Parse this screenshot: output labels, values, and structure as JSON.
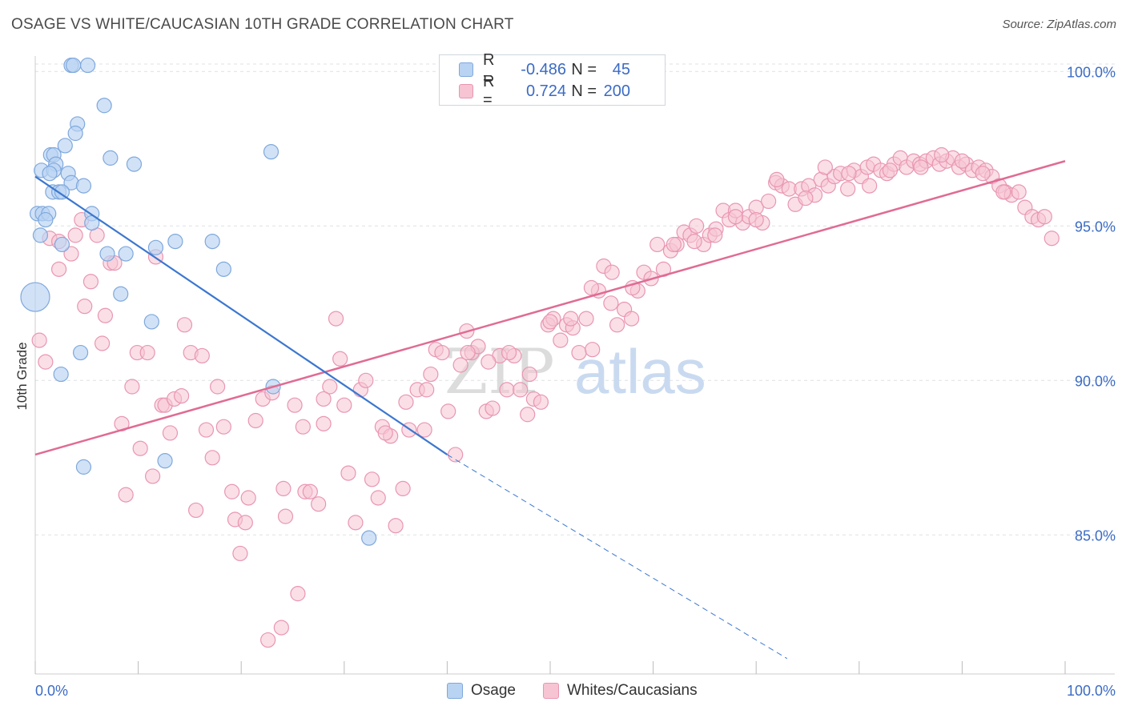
{
  "title": "OSAGE VS WHITE/CAUCASIAN 10TH GRADE CORRELATION CHART",
  "source": "Source: ZipAtlas.com",
  "watermark": {
    "part1": "ZIP",
    "part2": "atlas"
  },
  "colors": {
    "blue_fill": "#b9d3f2",
    "blue_stroke": "#7fa8dc",
    "blue_line": "#3b77d0",
    "pink_fill": "#f6c4d3",
    "pink_stroke": "#e996b1",
    "pink_line": "#e06b94",
    "tick_label": "#3b6bc4",
    "grid": "#dde1e6"
  },
  "legend": {
    "rows": [
      {
        "r_label": "R =",
        "r_value": "-0.486",
        "n_label": "N =",
        "n_value": "45"
      },
      {
        "r_label": "R =",
        "r_value": "0.724",
        "n_label": "N =",
        "n_value": "200"
      }
    ]
  },
  "bottom_legend": {
    "osage": "Osage",
    "whites": "Whites/Caucasians"
  },
  "chart_data": {
    "type": "scatter",
    "title": "OSAGE VS WHITE/CAUCASIAN 10TH GRADE CORRELATION CHART",
    "xlabel": "",
    "ylabel": "10th Grade",
    "xlim": [
      0,
      100
    ],
    "ylim": [
      80.5,
      100.5
    ],
    "x_tick_labels": [
      "0.0%",
      "100.0%"
    ],
    "y_ticks": [
      100,
      95,
      90,
      85
    ],
    "y_tick_labels": [
      "100.0%",
      "95.0%",
      "90.0%",
      "85.0%"
    ],
    "grid": true,
    "legend_position": "top-center",
    "series": [
      {
        "name": "Osage",
        "r": -0.486,
        "n": 45,
        "trend": {
          "x": [
            0,
            40
          ],
          "y": [
            96.6,
            87.6
          ],
          "dashed_to": [
            73,
            81
          ]
        },
        "points": [
          [
            3.5,
            100.2
          ],
          [
            3.7,
            100.2
          ],
          [
            5.1,
            100.2
          ],
          [
            6.7,
            98.9
          ],
          [
            4.1,
            98.3
          ],
          [
            3.9,
            98.0
          ],
          [
            2.9,
            97.6
          ],
          [
            1.5,
            97.3
          ],
          [
            1.8,
            97.3
          ],
          [
            7.3,
            97.2
          ],
          [
            9.6,
            97.0
          ],
          [
            2.0,
            97.0
          ],
          [
            0.6,
            96.8
          ],
          [
            1.8,
            96.8
          ],
          [
            1.4,
            96.7
          ],
          [
            3.2,
            96.7
          ],
          [
            3.5,
            96.4
          ],
          [
            4.7,
            96.3
          ],
          [
            1.7,
            96.1
          ],
          [
            2.3,
            96.1
          ],
          [
            2.6,
            96.1
          ],
          [
            0.2,
            95.4
          ],
          [
            0.7,
            95.4
          ],
          [
            1.3,
            95.4
          ],
          [
            5.5,
            95.4
          ],
          [
            1.0,
            95.2
          ],
          [
            5.5,
            95.1
          ],
          [
            0.5,
            94.7
          ],
          [
            13.6,
            94.5
          ],
          [
            17.2,
            94.5
          ],
          [
            2.6,
            94.4
          ],
          [
            11.7,
            94.3
          ],
          [
            7.0,
            94.1
          ],
          [
            8.8,
            94.1
          ],
          [
            18.3,
            93.6
          ],
          [
            8.3,
            92.8
          ],
          [
            0.0,
            92.7
          ],
          [
            11.3,
            91.9
          ],
          [
            4.4,
            90.9
          ],
          [
            2.5,
            90.2
          ],
          [
            23.1,
            89.8
          ],
          [
            12.6,
            87.4
          ],
          [
            4.7,
            87.2
          ],
          [
            32.4,
            84.9
          ],
          [
            22.9,
            97.4
          ]
        ]
      },
      {
        "name": "Whites/Caucasians",
        "r": 0.724,
        "n": 200,
        "trend": {
          "x": [
            0,
            100
          ],
          "y": [
            87.6,
            97.1
          ]
        },
        "points": [
          [
            0.4,
            91.3
          ],
          [
            1.0,
            90.6
          ],
          [
            1.4,
            94.6
          ],
          [
            2.3,
            94.5
          ],
          [
            2.3,
            93.6
          ],
          [
            3.5,
            94.1
          ],
          [
            3.9,
            94.7
          ],
          [
            4.5,
            95.2
          ],
          [
            4.8,
            92.4
          ],
          [
            5.4,
            93.2
          ],
          [
            6.0,
            94.7
          ],
          [
            6.5,
            91.2
          ],
          [
            6.8,
            92.1
          ],
          [
            7.3,
            93.8
          ],
          [
            7.7,
            93.8
          ],
          [
            8.4,
            88.6
          ],
          [
            8.8,
            86.3
          ],
          [
            9.4,
            89.8
          ],
          [
            9.9,
            90.9
          ],
          [
            10.2,
            87.8
          ],
          [
            10.9,
            90.9
          ],
          [
            11.4,
            86.9
          ],
          [
            11.7,
            94.0
          ],
          [
            12.3,
            89.2
          ],
          [
            12.6,
            89.2
          ],
          [
            13.1,
            88.3
          ],
          [
            13.5,
            89.4
          ],
          [
            14.2,
            89.5
          ],
          [
            14.5,
            91.8
          ],
          [
            15.1,
            90.9
          ],
          [
            15.6,
            85.8
          ],
          [
            16.2,
            90.8
          ],
          [
            16.6,
            88.4
          ],
          [
            17.2,
            87.5
          ],
          [
            17.7,
            89.8
          ],
          [
            18.3,
            88.5
          ],
          [
            19.1,
            86.4
          ],
          [
            19.4,
            85.5
          ],
          [
            19.9,
            84.4
          ],
          [
            20.4,
            85.4
          ],
          [
            20.7,
            86.2
          ],
          [
            21.4,
            88.7
          ],
          [
            22.1,
            89.4
          ],
          [
            22.6,
            81.6
          ],
          [
            23.0,
            89.6
          ],
          [
            23.9,
            82.0
          ],
          [
            24.1,
            86.5
          ],
          [
            24.3,
            85.6
          ],
          [
            25.2,
            89.2
          ],
          [
            25.5,
            83.1
          ],
          [
            26.0,
            88.5
          ],
          [
            26.2,
            86.4
          ],
          [
            26.7,
            86.4
          ],
          [
            27.5,
            86.0
          ],
          [
            28.0,
            88.6
          ],
          [
            28.6,
            89.8
          ],
          [
            29.2,
            92.0
          ],
          [
            29.6,
            90.7
          ],
          [
            30.4,
            87.0
          ],
          [
            31.1,
            85.4
          ],
          [
            31.6,
            89.7
          ],
          [
            32.1,
            90.0
          ],
          [
            32.7,
            86.8
          ],
          [
            33.3,
            86.2
          ],
          [
            33.7,
            88.5
          ],
          [
            34.5,
            88.2
          ],
          [
            35.0,
            85.3
          ],
          [
            35.7,
            86.5
          ],
          [
            36.3,
            88.4
          ],
          [
            37.1,
            89.7
          ],
          [
            37.8,
            88.4
          ],
          [
            38.4,
            90.2
          ],
          [
            38.9,
            91.0
          ],
          [
            39.5,
            90.9
          ],
          [
            40.1,
            89.0
          ],
          [
            40.8,
            87.6
          ],
          [
            41.3,
            90.5
          ],
          [
            41.9,
            91.6
          ],
          [
            42.4,
            90.9
          ],
          [
            43.0,
            91.1
          ],
          [
            43.8,
            89.0
          ],
          [
            44.4,
            89.1
          ],
          [
            45.1,
            90.8
          ],
          [
            45.8,
            89.7
          ],
          [
            46.5,
            90.8
          ],
          [
            47.1,
            89.7
          ],
          [
            47.8,
            88.9
          ],
          [
            48.4,
            89.4
          ],
          [
            49.1,
            89.3
          ],
          [
            49.8,
            91.8
          ],
          [
            50.3,
            92.0
          ],
          [
            51.0,
            91.3
          ],
          [
            51.6,
            91.8
          ],
          [
            52.2,
            91.7
          ],
          [
            52.8,
            90.9
          ],
          [
            53.5,
            92.0
          ],
          [
            54.1,
            91.0
          ],
          [
            54.7,
            92.9
          ],
          [
            55.2,
            93.7
          ],
          [
            55.9,
            92.5
          ],
          [
            56.5,
            91.8
          ],
          [
            57.2,
            92.3
          ],
          [
            57.9,
            92.0
          ],
          [
            58.5,
            92.9
          ],
          [
            59.1,
            93.5
          ],
          [
            59.8,
            93.3
          ],
          [
            60.4,
            94.4
          ],
          [
            61.0,
            93.6
          ],
          [
            61.7,
            94.2
          ],
          [
            62.3,
            94.4
          ],
          [
            63.0,
            94.8
          ],
          [
            63.6,
            94.7
          ],
          [
            64.2,
            95.0
          ],
          [
            64.9,
            94.4
          ],
          [
            65.5,
            94.7
          ],
          [
            66.1,
            94.9
          ],
          [
            66.8,
            95.5
          ],
          [
            67.4,
            95.2
          ],
          [
            68.0,
            95.5
          ],
          [
            68.7,
            95.1
          ],
          [
            69.3,
            95.3
          ],
          [
            70.0,
            95.6
          ],
          [
            70.6,
            95.1
          ],
          [
            71.2,
            95.8
          ],
          [
            71.9,
            96.4
          ],
          [
            72.5,
            96.3
          ],
          [
            73.2,
            96.2
          ],
          [
            73.8,
            95.7
          ],
          [
            74.4,
            96.2
          ],
          [
            75.1,
            96.3
          ],
          [
            75.7,
            96.0
          ],
          [
            76.3,
            96.5
          ],
          [
            77.0,
            96.3
          ],
          [
            77.6,
            96.6
          ],
          [
            78.2,
            96.7
          ],
          [
            78.9,
            96.2
          ],
          [
            79.5,
            96.8
          ],
          [
            80.2,
            96.6
          ],
          [
            80.8,
            96.9
          ],
          [
            81.4,
            97.0
          ],
          [
            82.1,
            96.8
          ],
          [
            82.7,
            96.7
          ],
          [
            83.4,
            97.0
          ],
          [
            84.0,
            97.2
          ],
          [
            84.6,
            96.9
          ],
          [
            85.3,
            97.1
          ],
          [
            85.9,
            97.0
          ],
          [
            86.5,
            97.1
          ],
          [
            87.2,
            97.2
          ],
          [
            87.8,
            97.0
          ],
          [
            88.5,
            97.1
          ],
          [
            89.1,
            97.2
          ],
          [
            89.7,
            96.9
          ],
          [
            90.4,
            97.0
          ],
          [
            91.0,
            96.8
          ],
          [
            91.6,
            96.9
          ],
          [
            92.3,
            96.8
          ],
          [
            92.9,
            96.6
          ],
          [
            93.6,
            96.3
          ],
          [
            94.2,
            96.1
          ],
          [
            94.8,
            96.0
          ],
          [
            95.5,
            96.1
          ],
          [
            96.1,
            95.6
          ],
          [
            96.8,
            95.3
          ],
          [
            97.4,
            95.2
          ],
          [
            98.0,
            95.3
          ],
          [
            98.7,
            94.6
          ],
          [
            72.0,
            96.5
          ],
          [
            74.8,
            95.9
          ],
          [
            76.7,
            96.9
          ],
          [
            79.0,
            96.7
          ],
          [
            81.0,
            96.3
          ],
          [
            83.0,
            96.8
          ],
          [
            86.0,
            96.9
          ],
          [
            88.0,
            97.3
          ],
          [
            90.0,
            97.1
          ],
          [
            92.0,
            96.7
          ],
          [
            94.0,
            96.1
          ],
          [
            58.0,
            93.0
          ],
          [
            62.0,
            94.4
          ],
          [
            64.0,
            94.5
          ],
          [
            66.0,
            94.7
          ],
          [
            68.0,
            95.3
          ],
          [
            70.0,
            95.2
          ],
          [
            54.0,
            93.0
          ],
          [
            56.0,
            93.5
          ],
          [
            50.0,
            91.9
          ],
          [
            52.0,
            92.0
          ],
          [
            46.0,
            90.9
          ],
          [
            44.0,
            90.6
          ],
          [
            42.0,
            90.9
          ],
          [
            48.0,
            90.2
          ],
          [
            36.0,
            89.3
          ],
          [
            38.0,
            89.7
          ],
          [
            34.0,
            88.3
          ],
          [
            30.0,
            89.2
          ],
          [
            28.0,
            89.4
          ]
        ]
      }
    ]
  }
}
